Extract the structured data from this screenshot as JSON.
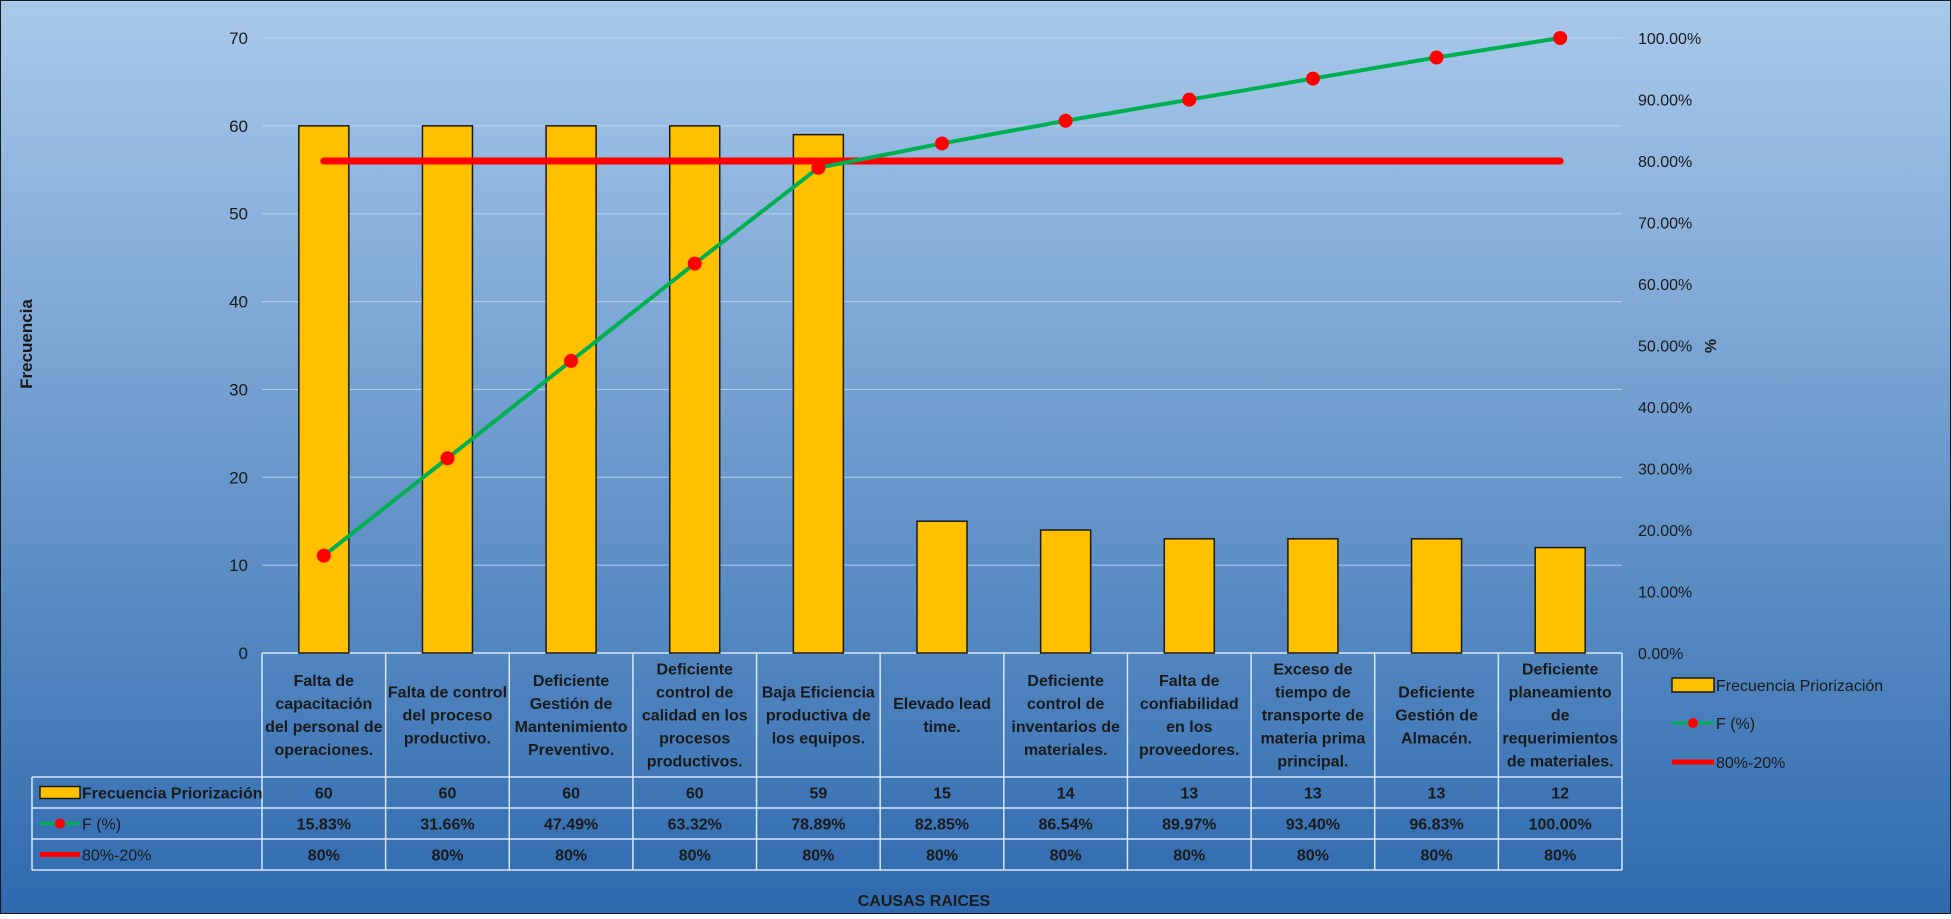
{
  "chart_data": {
    "type": "bar",
    "ylabel": "Frecuencia",
    "y2label": "%",
    "xlabel": "CAUSAS RAICES",
    "ylim": [
      0,
      70
    ],
    "y2lim": [
      0,
      100
    ],
    "yticks": [
      "0",
      "10",
      "20",
      "30",
      "40",
      "50",
      "60",
      "70"
    ],
    "y2ticks": [
      "0.00%",
      "10.00%",
      "20.00%",
      "30.00%",
      "40.00%",
      "50.00%",
      "60.00%",
      "70.00%",
      "80.00%",
      "90.00%",
      "100.00%"
    ],
    "categories": [
      "Falta de capacitación del personal de operaciones.",
      "Falta de control del proceso productivo.",
      "Deficiente Gestión de Mantenimiento Preventivo.",
      "Deficiente control de calidad en los procesos productivos.",
      "Baja Eficiencia productiva de los equipos.",
      "Elevado lead time.",
      "Deficiente control de inventarios de materiales.",
      "Falta de confiabilidad en los proveedores.",
      "Exceso de tiempo de transporte de materia prima principal.",
      "Deficiente Gestión de Almacén.",
      "Deficiente planeamiento de requerimientos de materiales."
    ],
    "category_lines": [
      [
        "Falta de",
        "capacitación",
        "del personal de",
        "operaciones."
      ],
      [
        "Falta de control",
        "del proceso",
        "productivo."
      ],
      [
        "Deficiente",
        "Gestión de",
        "Mantenimiento",
        "Preventivo."
      ],
      [
        "Deficiente",
        "control de",
        "calidad en los",
        "procesos",
        "productivos."
      ],
      [
        "Baja Eficiencia",
        "productiva de",
        "los equipos."
      ],
      [
        "Elevado lead",
        "time."
      ],
      [
        "Deficiente",
        "control de",
        "inventarios de",
        "materiales."
      ],
      [
        "Falta de",
        "confiabilidad",
        "en los",
        "proveedores."
      ],
      [
        "Exceso de",
        "tiempo de",
        "transporte de",
        "materia prima",
        "principal."
      ],
      [
        "Deficiente",
        "Gestión de",
        "Almacén."
      ],
      [
        "Deficiente",
        "planeamiento",
        "de",
        "requerimientos",
        "de materiales."
      ]
    ],
    "series": [
      {
        "name": "Frecuencia Priorización",
        "type": "bar",
        "axis": "left",
        "values": [
          60,
          60,
          60,
          60,
          59,
          15,
          14,
          13,
          13,
          13,
          12
        ],
        "labels": [
          "60",
          "60",
          "60",
          "60",
          "59",
          "15",
          "14",
          "13",
          "13",
          "13",
          "12"
        ]
      },
      {
        "name": "F (%)",
        "type": "line",
        "axis": "right",
        "values": [
          15.83,
          31.66,
          47.49,
          63.32,
          78.89,
          82.85,
          86.54,
          89.97,
          93.4,
          96.83,
          100.0
        ],
        "labels": [
          "15.83%",
          "31.66%",
          "47.49%",
          "63.32%",
          "78.89%",
          "82.85%",
          "86.54%",
          "89.97%",
          "93.40%",
          "96.83%",
          "100.00%"
        ]
      },
      {
        "name": "80%-20%",
        "type": "line",
        "axis": "right",
        "values": [
          80,
          80,
          80,
          80,
          80,
          80,
          80,
          80,
          80,
          80,
          80
        ],
        "labels": [
          "80%",
          "80%",
          "80%",
          "80%",
          "80%",
          "80%",
          "80%",
          "80%",
          "80%",
          "80%",
          "80%"
        ]
      }
    ],
    "legend_position": "right",
    "grid": true,
    "colors": {
      "bar": "#FFC000",
      "cumulative_line": "#00B050",
      "cumulative_marker": "#FF0000",
      "threshold_line": "#FF0000",
      "background_top": "#A9C9EB",
      "background_bottom": "#2E6AAE"
    }
  }
}
